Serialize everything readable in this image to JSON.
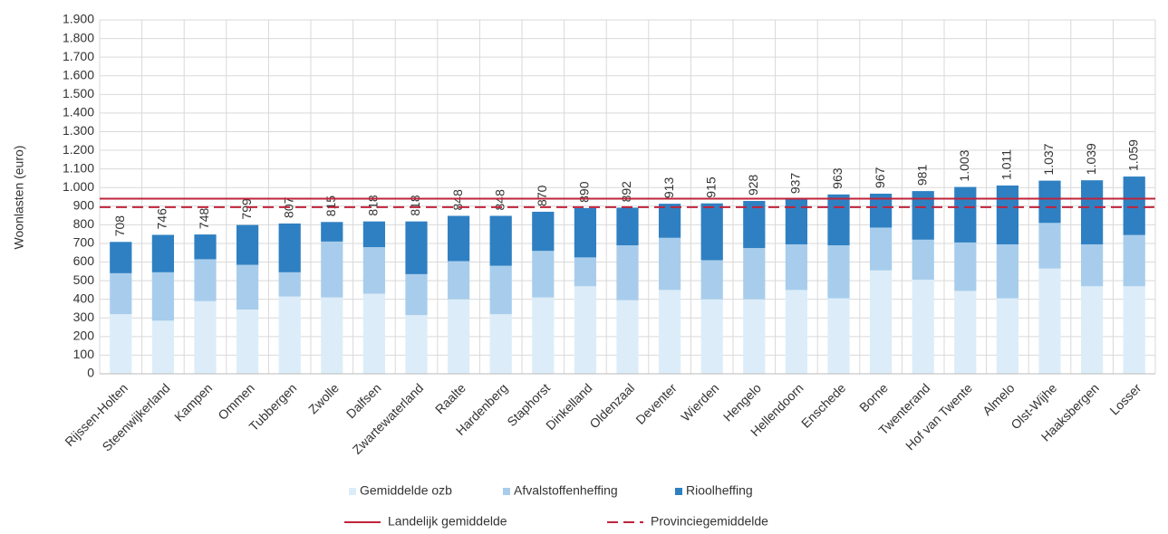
{
  "chart_data": {
    "type": "stacked_bar",
    "y_label": "Woonlasten  (euro)",
    "categories": [
      "Rijssen-Holten",
      "Steenwijkerland",
      "Kampen",
      "Ommen",
      "Tubbergen",
      "Zwolle",
      "Dalfsen",
      "Zwartewaterland",
      "Raalte",
      "Hardenberg",
      "Staphorst",
      "Dinkelland",
      "Oldenzaal",
      "Deventer",
      "Wierden",
      "Hengelo",
      "Hellendoorn",
      "Enschede",
      "Borne",
      "Twenterand",
      "Hof van Twente",
      "Almelo",
      "Olst-Wijhe",
      "Haaksbergen",
      "Losser"
    ],
    "series": [
      {
        "name": "Gemiddelde ozb",
        "color": "#dcedf9",
        "values": [
          320,
          285,
          390,
          345,
          415,
          410,
          430,
          315,
          400,
          320,
          410,
          470,
          395,
          450,
          400,
          400,
          450,
          405,
          555,
          505,
          445,
          405,
          565,
          470,
          470
        ]
      },
      {
        "name": "Afvalstoffenheffing",
        "color": "#a8cdec",
        "values": [
          220,
          260,
          225,
          240,
          130,
          300,
          250,
          220,
          205,
          260,
          250,
          155,
          295,
          280,
          210,
          275,
          245,
          285,
          230,
          215,
          260,
          290,
          245,
          225,
          275
        ]
      },
      {
        "name": "Rioolheffing",
        "color": "#2f80c2",
        "values": [
          168,
          201,
          133,
          214,
          262,
          105,
          138,
          283,
          243,
          268,
          210,
          265,
          202,
          183,
          305,
          253,
          242,
          273,
          182,
          261,
          298,
          316,
          227,
          344,
          314
        ]
      }
    ],
    "totals": {
      "values": [
        708,
        746,
        748,
        799,
        807,
        815,
        818,
        818,
        848,
        848,
        870,
        890,
        892,
        913,
        915,
        928,
        937,
        963,
        967,
        981,
        1003,
        1011,
        1037,
        1039,
        1059
      ],
      "value_labels": [
        "708",
        "746",
        "748",
        "799",
        "807",
        "815",
        "818",
        "818",
        "848",
        "848",
        "870",
        "890",
        "892",
        "913",
        "915",
        "928",
        "937",
        "963",
        "967",
        "981",
        "1.003",
        "1.011",
        "1.037",
        "1.039",
        "1.059"
      ]
    },
    "reference_lines": [
      {
        "name": "Landelijk gemiddelde",
        "value": 940,
        "color": "#c0233a",
        "dashed": false
      },
      {
        "name": "Provinciegemiddelde",
        "value": 895,
        "color": "#c0233a",
        "dashed": true
      }
    ],
    "ylim": [
      0,
      1900
    ],
    "yticks": [
      0,
      100,
      200,
      300,
      400,
      500,
      600,
      700,
      800,
      900,
      {
        "value": 1000,
        "label": "1.000"
      },
      {
        "value": 1100,
        "label": "1.100"
      },
      {
        "value": 1200,
        "label": "1.200"
      },
      {
        "value": 1300,
        "label": "1.300"
      },
      {
        "value": 1400,
        "label": "1.400"
      },
      {
        "value": 1500,
        "label": "1.500"
      },
      {
        "value": 1600,
        "label": "1.600"
      },
      {
        "value": 1700,
        "label": "1.700"
      },
      {
        "value": 1800,
        "label": "1.800"
      },
      {
        "value": 1900,
        "label": "1.900"
      }
    ],
    "grid": true
  }
}
